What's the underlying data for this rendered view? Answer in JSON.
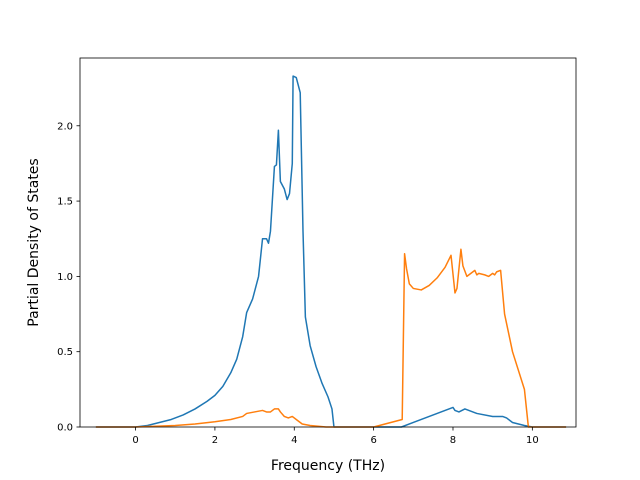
{
  "chart_data": {
    "type": "line",
    "xlabel": "Frequency (THz)",
    "ylabel": "Partial Density of States",
    "xlim": [
      -1.4,
      11.1
    ],
    "ylim": [
      0.0,
      2.45
    ],
    "xticks": [
      0,
      2,
      4,
      6,
      8,
      10
    ],
    "yticks": [
      0.0,
      0.5,
      1.0,
      1.5,
      2.0
    ],
    "xtick_labels": [
      "0",
      "2",
      "4",
      "6",
      "8",
      "10"
    ],
    "ytick_labels": [
      "0.0",
      "0.5",
      "1.0",
      "1.5",
      "2.0"
    ],
    "grid": false,
    "legend": "none",
    "series": [
      {
        "color": "#1f77b4",
        "x": [
          -1.0,
          0.0,
          0.3,
          0.6,
          0.9,
          1.2,
          1.5,
          1.8,
          2.0,
          2.2,
          2.4,
          2.55,
          2.7,
          2.8,
          2.95,
          3.1,
          3.2,
          3.3,
          3.35,
          3.4,
          3.5,
          3.55,
          3.6,
          3.65,
          3.75,
          3.82,
          3.88,
          3.95,
          3.97,
          4.05,
          4.15,
          4.22,
          4.28,
          4.4,
          4.55,
          4.7,
          4.85,
          4.95,
          5.0,
          6.0,
          6.7,
          7.0,
          7.3,
          7.6,
          7.9,
          8.0,
          8.05,
          8.15,
          8.3,
          8.6,
          9.0,
          9.25,
          9.35,
          9.5,
          9.8,
          10.0,
          10.85
        ],
        "y": [
          0.0,
          0.0,
          0.01,
          0.03,
          0.05,
          0.08,
          0.12,
          0.17,
          0.21,
          0.27,
          0.36,
          0.45,
          0.6,
          0.76,
          0.85,
          1.0,
          1.25,
          1.25,
          1.22,
          1.3,
          1.73,
          1.74,
          1.97,
          1.63,
          1.58,
          1.51,
          1.55,
          1.75,
          2.33,
          2.32,
          2.22,
          1.3,
          0.73,
          0.54,
          0.4,
          0.29,
          0.2,
          0.12,
          0.0,
          0.0,
          0.0,
          0.03,
          0.06,
          0.09,
          0.12,
          0.13,
          0.11,
          0.1,
          0.12,
          0.09,
          0.07,
          0.07,
          0.06,
          0.03,
          0.01,
          0.0,
          0.0
        ]
      },
      {
        "color": "#ff7f0e",
        "x": [
          -1.0,
          0.0,
          0.5,
          1.0,
          1.5,
          2.0,
          2.4,
          2.7,
          2.8,
          3.0,
          3.2,
          3.3,
          3.4,
          3.5,
          3.6,
          3.65,
          3.75,
          3.85,
          3.95,
          4.05,
          4.2,
          4.4,
          4.6,
          4.8,
          5.0,
          6.0,
          6.72,
          6.75,
          6.78,
          6.83,
          6.9,
          7.0,
          7.2,
          7.4,
          7.6,
          7.8,
          7.95,
          8.05,
          8.1,
          8.2,
          8.25,
          8.35,
          8.45,
          8.55,
          8.6,
          8.65,
          8.8,
          8.9,
          9.0,
          9.05,
          9.1,
          9.2,
          9.3,
          9.5,
          9.8,
          9.9,
          10.0,
          10.85
        ],
        "y": [
          0.0,
          0.0,
          0.005,
          0.01,
          0.02,
          0.035,
          0.05,
          0.07,
          0.09,
          0.1,
          0.11,
          0.1,
          0.1,
          0.12,
          0.12,
          0.1,
          0.07,
          0.06,
          0.07,
          0.05,
          0.02,
          0.01,
          0.005,
          0.0,
          0.0,
          0.0,
          0.05,
          0.6,
          1.15,
          1.05,
          0.95,
          0.92,
          0.91,
          0.94,
          0.99,
          1.06,
          1.14,
          0.89,
          0.92,
          1.18,
          1.07,
          1.0,
          1.02,
          1.04,
          1.01,
          1.02,
          1.01,
          1.0,
          1.02,
          1.01,
          1.03,
          1.04,
          0.75,
          0.5,
          0.25,
          0.0,
          0.0,
          0.0
        ]
      }
    ]
  }
}
